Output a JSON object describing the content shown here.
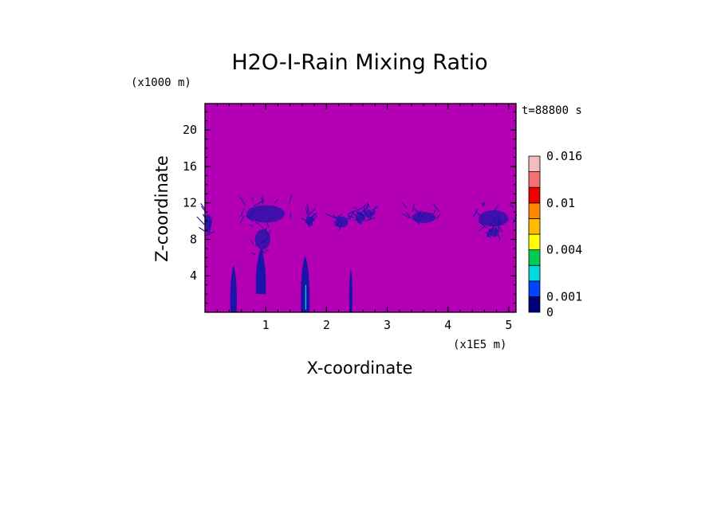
{
  "chart_data": {
    "type": "heatmap",
    "title": "H2O-I-Rain Mixing Ratio",
    "time_label": "t=88800 s",
    "xlabel": "X-coordinate",
    "ylabel": "Z-coordinate",
    "x_scale_label": "(x1E5 m)",
    "y_scale_label": "(x1000 m)",
    "x_ticks": [
      "1",
      "2",
      "3",
      "4",
      "5"
    ],
    "x_tick_values": [
      1,
      2,
      3,
      4,
      5
    ],
    "y_ticks": [
      "4",
      "8",
      "12",
      "16",
      "20"
    ],
    "y_tick_values": [
      4,
      8,
      12,
      16,
      20
    ],
    "xlim": [
      0,
      5.12
    ],
    "ylim": [
      0,
      22.9
    ],
    "background_value": 0,
    "colorbar": {
      "levels": [
        0,
        0.001,
        0.002,
        0.003,
        0.004,
        0.006,
        0.008,
        0.01,
        0.012,
        0.014,
        0.016
      ],
      "colors": [
        "#00007a",
        "#0044ff",
        "#00d9d9",
        "#00cc55",
        "#ffff00",
        "#ffbb00",
        "#ff8800",
        "#ee0000",
        "#f57070",
        "#f5bcbc"
      ],
      "tick_labels": [
        "0",
        "0.001",
        "0.004",
        "0.01",
        "0.016"
      ],
      "tick_values": [
        0,
        0.001,
        0.004,
        0.01,
        0.016
      ]
    },
    "colors": {
      "background_field": "#b400b4",
      "feature": "#1a14aa"
    }
  }
}
